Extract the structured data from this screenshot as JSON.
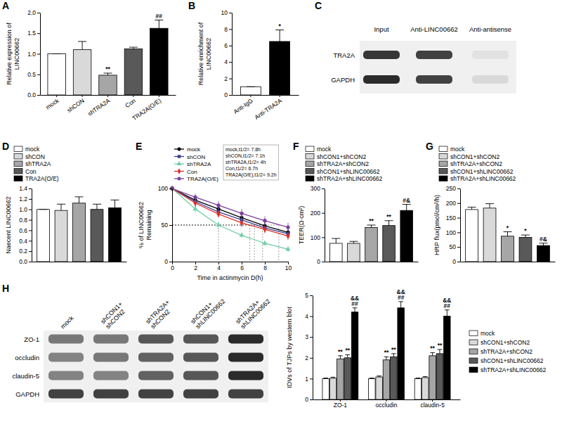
{
  "chart_data": [
    {
      "type": "bar",
      "panel_label": "A",
      "ylabel": [
        "Relative expression of",
        "LINC00662"
      ],
      "categories": [
        "mock",
        "shCON",
        "shTRA2A",
        "Con",
        "TRA2A(O/E)"
      ],
      "values": [
        1.0,
        1.1,
        0.48,
        1.12,
        1.62
      ],
      "errors": [
        0,
        0.2,
        0.05,
        0.04,
        0.2
      ],
      "colors": [
        "#ffffff",
        "#d9d9d9",
        "#a6a6a6",
        "#595959",
        "#000000"
      ],
      "ylim": [
        0,
        2
      ],
      "yticks": [
        {
          "value": 0,
          "label": "0.0"
        },
        0.5,
        {
          "value": 1,
          "label": "1.0"
        },
        1.5,
        {
          "value": 2,
          "label": "2.0"
        }
      ],
      "annotations": [
        {
          "index": 2,
          "text": "**"
        },
        {
          "index": 4,
          "text": "##"
        }
      ]
    },
    {
      "type": "bar",
      "panel_label": "B",
      "ylabel": [
        "Relative enrichment of",
        "LINC00662"
      ],
      "categories": [
        "Anti-IgG",
        "Anti-TRA2A"
      ],
      "values": [
        1.0,
        6.5
      ],
      "errors": [
        0,
        1.4
      ],
      "colors": [
        "#ffffff",
        "#000000"
      ],
      "ylim": [
        0,
        10
      ],
      "yticks": [
        0,
        2,
        4,
        6,
        8,
        10
      ],
      "annotations": [
        {
          "index": 1,
          "text": "*"
        }
      ]
    },
    {
      "type": "bar",
      "panel_label": "D",
      "ylabel": "Naecent LINC00662",
      "categories": [
        "mock",
        "shCON",
        "shTRA2A",
        "Con",
        "TRA2A(O/E)"
      ],
      "values": [
        1.0,
        0.98,
        1.12,
        1.0,
        1.03
      ],
      "errors": [
        0,
        0.12,
        0.12,
        0.1,
        0.15
      ],
      "colors": [
        "#ffffff",
        "#d9d9d9",
        "#a6a6a6",
        "#595959",
        "#000000"
      ],
      "ylim": [
        0,
        1.4
      ],
      "yticks": [
        {
          "value": 0,
          "label": "0.0"
        },
        0.2,
        0.4,
        0.6,
        0.8,
        {
          "value": 1,
          "label": "1.0"
        },
        1.2,
        1.4
      ],
      "tick_labels": "y",
      "legend": "top"
    },
    {
      "type": "line",
      "panel_label": "E",
      "ylabel": [
        "% of LINC00662",
        "Remaining"
      ],
      "xlabel": "Time in actinmycin D(h)",
      "x": [
        0,
        2,
        4,
        6,
        8,
        10
      ],
      "xlim": [
        0,
        10
      ],
      "xticks": [
        0,
        2,
        4,
        6,
        8,
        10
      ],
      "ylim": [
        0,
        100
      ],
      "yticks": [
        0,
        50,
        100
      ],
      "legend": "top",
      "half_level": 50,
      "text_box": [
        "mock,t1/2= 7.8h",
        "shCON,t1/2= 7.1h",
        "shTRA2A,t1/2= 4h",
        "Con,t1/2= 6.7h",
        "TRA2A(O/E),t1/2= 9.2h"
      ],
      "series": [
        {
          "name": "mock",
          "color": "#000000",
          "marker": "circle",
          "values": [
            100,
            84,
            72,
            60,
            49,
            40
          ],
          "errors": [
            0,
            5,
            5,
            6,
            5,
            5
          ],
          "half_life": 7.8
        },
        {
          "name": "shCON",
          "color": "#3b3f8f",
          "marker": "square",
          "values": [
            100,
            82,
            68,
            57,
            46,
            38
          ],
          "errors": [
            0,
            5,
            6,
            5,
            6,
            5
          ],
          "half_life": 7.1
        },
        {
          "name": "shTRA2A",
          "color": "#6fcfa8",
          "marker": "triangle",
          "values": [
            100,
            72,
            50,
            36,
            25,
            17
          ],
          "errors": [
            0,
            5,
            5,
            4,
            4,
            4
          ],
          "half_life": 4
        },
        {
          "name": "Con",
          "color": "#e0312a",
          "marker": "diamond",
          "values": [
            100,
            80,
            65,
            53,
            44,
            35
          ],
          "errors": [
            0,
            5,
            5,
            6,
            5,
            5
          ],
          "half_life": 6.7
        },
        {
          "name": "TRA2A(O/E)",
          "color": "#7b3fa0",
          "marker": "circle",
          "values": [
            100,
            88,
            77,
            66,
            56,
            47
          ],
          "errors": [
            0,
            5,
            6,
            6,
            6,
            6
          ],
          "half_life": 9.2
        }
      ]
    },
    {
      "type": "bar",
      "panel_label": "F",
      "ylabel": "TEER(Ω·cm²)",
      "categories": [
        "mock",
        "shCON1+shCON2",
        "shTRA2A+shCON2",
        "shCON1+shLINC00662",
        "shTRA2A+shLINC00662"
      ],
      "values": [
        75,
        75,
        140,
        148,
        210
      ],
      "errors": [
        20,
        8,
        10,
        20,
        25
      ],
      "colors": [
        "#ffffff",
        "#d9d9d9",
        "#a6a6a6",
        "#595959",
        "#000000"
      ],
      "ylim": [
        0,
        300
      ],
      "yticks": [
        0,
        100,
        200,
        300
      ],
      "tick_labels": "y",
      "legend": "top",
      "annotations": [
        {
          "index": 2,
          "text": "**"
        },
        {
          "index": 3,
          "text": "**"
        },
        {
          "index": 4,
          "text": "#&"
        }
      ]
    },
    {
      "type": "bar",
      "panel_label": "G",
      "ylabel": "HRP flux(pmol/cm²/h)",
      "categories": [
        "mock",
        "shCON1+shCON2",
        "shTRA2A+shCON2",
        "shCON1+shLINC00662",
        "shTRA2A+shLINC00662"
      ],
      "values": [
        178,
        183,
        87,
        83,
        55
      ],
      "errors": [
        8,
        15,
        15,
        8,
        8
      ],
      "colors": [
        "#ffffff",
        "#d9d9d9",
        "#a6a6a6",
        "#595959",
        "#000000"
      ],
      "ylim": [
        0,
        250
      ],
      "yticks": [
        0,
        50,
        100,
        150,
        200,
        250
      ],
      "tick_labels": "y",
      "legend": "top",
      "annotations": [
        {
          "index": 2,
          "text": "*"
        },
        {
          "index": 3,
          "text": "*"
        },
        {
          "index": 4,
          "text": "#&"
        }
      ]
    },
    {
      "type": "bar",
      "ylabel": "IDVs of TJPs by western blot",
      "categories": [
        "ZO-1",
        "occludin",
        "claudin-5"
      ],
      "ylim": [
        0,
        5
      ],
      "yticks": [
        0,
        1,
        2,
        3,
        4,
        5
      ],
      "legend": "right",
      "series": [
        {
          "name": "mock",
          "color": "#ffffff",
          "values": [
            1.0,
            1.0,
            1.0
          ],
          "errors": [
            0.03,
            0.03,
            0.03
          ]
        },
        {
          "name": "shCON1+shCON2",
          "color": "#d9d9d9",
          "values": [
            1.02,
            1.08,
            1.05
          ],
          "errors": [
            0.05,
            0.05,
            0.05
          ]
        },
        {
          "name": "shTRA2A+shCON2",
          "color": "#a6a6a6",
          "values": [
            1.95,
            1.9,
            2.1
          ],
          "errors": [
            0.15,
            0.15,
            0.15
          ]
        },
        {
          "name": "shCON1+shLINC00662",
          "color": "#595959",
          "values": [
            2.0,
            2.05,
            2.2
          ],
          "errors": [
            0.15,
            0.15,
            0.2
          ]
        },
        {
          "name": "shTRA2A+shLINC00662",
          "color": "#000000",
          "values": [
            4.2,
            4.4,
            4.0
          ],
          "errors": [
            0.2,
            0.3,
            0.3
          ]
        }
      ],
      "annotations": [
        {
          "category": 0,
          "series": 2,
          "text": "**"
        },
        {
          "category": 0,
          "series": 3,
          "text": "**"
        },
        {
          "category": 0,
          "series": 4,
          "text": "##"
        },
        {
          "category": 0,
          "series": 4,
          "text": "&&"
        },
        {
          "category": 1,
          "series": 2,
          "text": "**"
        },
        {
          "category": 1,
          "series": 3,
          "text": "**"
        },
        {
          "category": 1,
          "series": 4,
          "text": "##"
        },
        {
          "category": 1,
          "series": 4,
          "text": "&&"
        },
        {
          "category": 2,
          "series": 2,
          "text": "**"
        },
        {
          "category": 2,
          "series": 3,
          "text": "**"
        },
        {
          "category": 2,
          "series": 4,
          "text": "##"
        },
        {
          "category": 2,
          "series": 4,
          "text": "&&"
        }
      ]
    }
  ],
  "blots": [
    {
      "panel_label": "C",
      "columns": [
        [
          "Input"
        ],
        [
          "Anti-LINC00662"
        ],
        [
          "Anti-antisense"
        ]
      ],
      "rows": [
        "TRA2A",
        "GAPDH"
      ],
      "intensity": [
        [
          0.85,
          0.8,
          0.06
        ],
        [
          0.9,
          0.8,
          0.1
        ]
      ]
    },
    {
      "panel_label": "H",
      "columns": [
        [
          "mock"
        ],
        [
          "shCON1+",
          "shCON2"
        ],
        [
          "shTRA2A+",
          "shCON2"
        ],
        [
          "shCON1+",
          "shLINC00662"
        ],
        [
          "shTRA2A+",
          "shLINC00662"
        ]
      ],
      "rows": [
        "ZO-1",
        "occludin",
        "claudin-5",
        "GAPDH"
      ],
      "intensity": [
        [
          0.55,
          0.55,
          0.7,
          0.7,
          0.9
        ],
        [
          0.5,
          0.55,
          0.65,
          0.7,
          0.9
        ],
        [
          0.5,
          0.5,
          0.65,
          0.7,
          0.9
        ],
        [
          0.8,
          0.8,
          0.8,
          0.8,
          0.8
        ]
      ]
    }
  ]
}
